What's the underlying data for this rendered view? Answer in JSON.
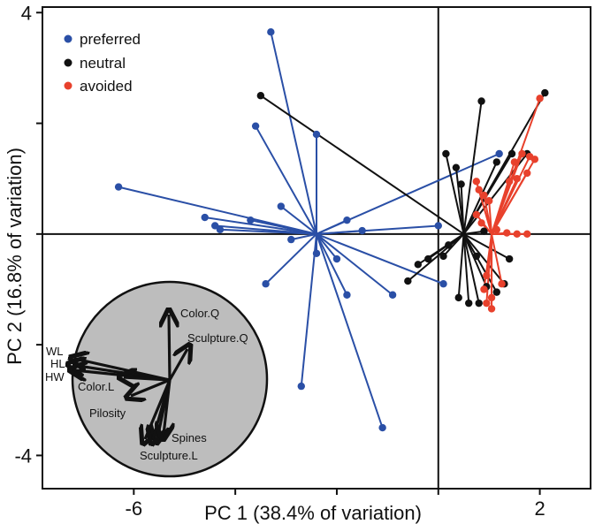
{
  "chart_data": {
    "type": "scatter",
    "title": "",
    "xlabel": "PC 1 (38.4% of variation)",
    "ylabel": "PC 2 (16.8% of variation)",
    "xlim": [
      -7.8,
      3
    ],
    "ylim": [
      -4.6,
      4.1
    ],
    "x_ticks": [
      -6,
      2
    ],
    "y_ticks": [
      4,
      -4
    ],
    "tick_marks_x": [
      -6,
      -4,
      -2,
      0,
      2
    ],
    "tick_marks_y": [
      4,
      2,
      0,
      -2,
      -4
    ],
    "grid": false,
    "reference_lines": {
      "x": 0,
      "y": 0
    },
    "legend_position": "top-left",
    "series": [
      {
        "name": "preferred",
        "color": "#2a4fa6",
        "centroid": [
          -2.4,
          0.0
        ],
        "points": [
          [
            -3.3,
            3.65
          ],
          [
            -3.6,
            1.95
          ],
          [
            -2.4,
            1.8
          ],
          [
            -6.3,
            0.85
          ],
          [
            -3.1,
            0.5
          ],
          [
            -4.6,
            0.3
          ],
          [
            -4.4,
            0.15
          ],
          [
            -4.3,
            0.08
          ],
          [
            -3.7,
            0.25
          ],
          [
            -1.8,
            0.25
          ],
          [
            -1.5,
            0.06
          ],
          [
            0.0,
            0.15
          ],
          [
            1.2,
            1.45
          ],
          [
            -3.4,
            -0.9
          ],
          [
            -2.9,
            -0.1
          ],
          [
            -2.4,
            -0.35
          ],
          [
            -2.0,
            -0.45
          ],
          [
            -1.8,
            -1.1
          ],
          [
            -0.9,
            -1.1
          ],
          [
            0.1,
            -0.9
          ],
          [
            -2.7,
            -2.75
          ],
          [
            -1.1,
            -3.5
          ]
        ]
      },
      {
        "name": "neutral",
        "color": "#111111",
        "centroid": [
          0.5,
          0.0
        ],
        "points": [
          [
            -3.5,
            2.5
          ],
          [
            0.15,
            1.45
          ],
          [
            0.35,
            1.2
          ],
          [
            0.85,
            2.4
          ],
          [
            2.1,
            2.55
          ],
          [
            1.15,
            1.3
          ],
          [
            1.45,
            1.45
          ],
          [
            1.75,
            1.45
          ],
          [
            0.45,
            0.9
          ],
          [
            0.9,
            0.05
          ],
          [
            1.4,
            -0.45
          ],
          [
            -0.4,
            -0.55
          ],
          [
            -0.6,
            -0.85
          ],
          [
            -0.2,
            -0.45
          ],
          [
            0.1,
            -0.4
          ],
          [
            0.4,
            -1.15
          ],
          [
            0.6,
            -1.25
          ],
          [
            0.8,
            -1.25
          ],
          [
            0.95,
            -0.95
          ],
          [
            1.15,
            -1.05
          ],
          [
            1.3,
            -0.9
          ],
          [
            0.2,
            -0.2
          ],
          [
            0.75,
            -0.4
          ]
        ]
      },
      {
        "name": "avoided",
        "color": "#e8412c",
        "centroid": [
          1.05,
          0.0
        ],
        "points": [
          [
            2.0,
            2.45
          ],
          [
            1.9,
            1.35
          ],
          [
            1.8,
            1.4
          ],
          [
            1.65,
            1.45
          ],
          [
            1.5,
            1.3
          ],
          [
            1.75,
            1.1
          ],
          [
            1.55,
            1.0
          ],
          [
            1.4,
            0.95
          ],
          [
            0.75,
            0.95
          ],
          [
            0.8,
            0.8
          ],
          [
            0.9,
            0.7
          ],
          [
            1.0,
            0.6
          ],
          [
            0.75,
            0.35
          ],
          [
            0.85,
            0.2
          ],
          [
            1.15,
            0.08
          ],
          [
            1.35,
            0.02
          ],
          [
            1.55,
            0.0
          ],
          [
            1.75,
            0.0
          ],
          [
            1.25,
            -0.9
          ],
          [
            1.05,
            -1.15
          ],
          [
            0.95,
            -1.25
          ],
          [
            1.05,
            -1.35
          ],
          [
            0.9,
            -1.0
          ],
          [
            0.95,
            -0.75
          ]
        ]
      }
    ]
  },
  "biplot": {
    "circle_color": "#bdbdbd",
    "labels": {
      "wl": "WL",
      "hl": "HL",
      "hw": "HW",
      "color_q": "Color.Q",
      "sculpture_q": "Sculpture.Q",
      "color_l": "Color.L",
      "pilosity": "Pilosity",
      "spines": "Spines",
      "sculpture_l": "Sculpture.L"
    }
  }
}
